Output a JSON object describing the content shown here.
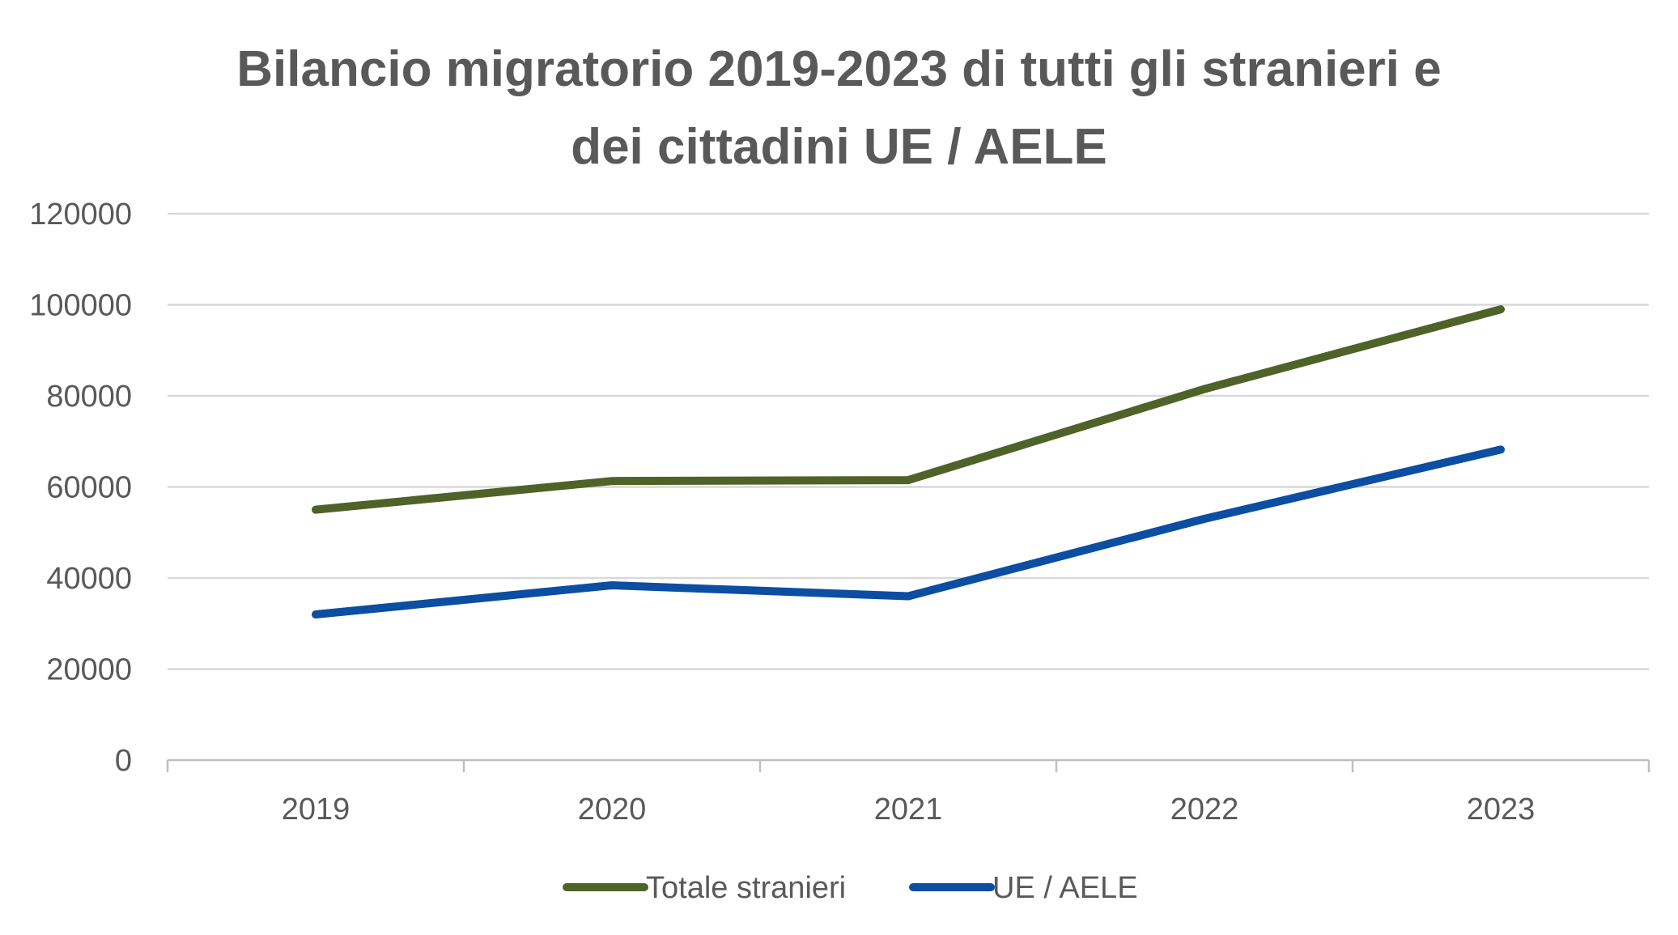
{
  "chart_data": {
    "type": "line",
    "title_lines": [
      "Bilancio migratorio 2019-2023 di tutti gli stranieri e",
      "dei cittadini UE / AELE"
    ],
    "xlabel": "",
    "ylabel": "",
    "categories": [
      "2019",
      "2020",
      "2021",
      "2022",
      "2023"
    ],
    "ylim": [
      0,
      120000
    ],
    "yticks": [
      "0",
      "20000",
      "40000",
      "60000",
      "80000",
      "100000",
      "120000"
    ],
    "grid": true,
    "legend_position": "bottom",
    "series": [
      {
        "name": "Totale stranieri",
        "color": "#4f6228",
        "values": [
          55000,
          61300,
          61500,
          81500,
          99000
        ]
      },
      {
        "name": "UE / AELE",
        "color": "#0b4ea2",
        "values": [
          32000,
          38400,
          36000,
          53000,
          68200
        ]
      }
    ],
    "colors": {
      "grid": "#d9d9d9",
      "axis": "#bfbfbf",
      "text": "#595959"
    }
  }
}
